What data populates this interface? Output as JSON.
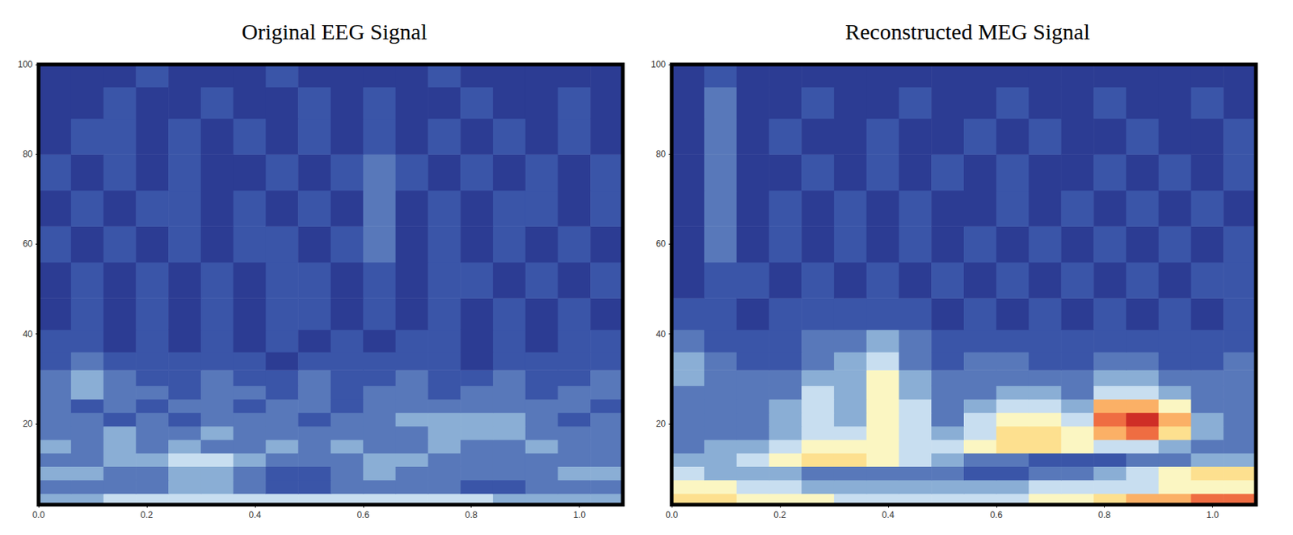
{
  "chart_data": [
    {
      "type": "heatmap",
      "title": "Original EEG Signal",
      "xlim": [
        0,
        1.08
      ],
      "xticks": [
        {
          "value": 0,
          "label": "0.0"
        },
        0.2,
        0.4,
        0.6,
        0.8,
        {
          "value": 1,
          "label": "1.0"
        }
      ],
      "ylim": [
        2,
        100
      ],
      "yticks": [
        20,
        40,
        60,
        80,
        100
      ],
      "x": [
        0.03,
        0.09,
        0.15,
        0.21,
        0.27,
        0.33,
        0.39,
        0.45,
        0.51,
        0.57,
        0.63,
        0.69,
        0.75,
        0.81,
        0.87,
        0.93,
        0.99,
        1.05
      ],
      "y": [
        3,
        6,
        9,
        12,
        15,
        18,
        21,
        24,
        27,
        30,
        34,
        38,
        44,
        52,
        60,
        68,
        76,
        84,
        92,
        98
      ],
      "cells": [
        [
          4,
          4,
          5,
          5,
          5,
          5,
          5,
          5,
          5,
          5,
          5,
          5,
          5,
          5,
          4,
          4,
          4,
          4
        ],
        [
          3,
          3,
          3,
          3,
          4,
          4,
          3,
          2,
          2,
          3,
          3,
          3,
          3,
          2,
          2,
          3,
          3,
          3
        ],
        [
          4,
          4,
          3,
          3,
          4,
          4,
          3,
          2,
          2,
          3,
          4,
          3,
          3,
          3,
          3,
          3,
          4,
          4
        ],
        [
          3,
          3,
          4,
          4,
          5,
          5,
          4,
          3,
          3,
          3,
          4,
          4,
          3,
          3,
          3,
          3,
          3,
          3
        ],
        [
          4,
          3,
          4,
          3,
          4,
          3,
          3,
          4,
          3,
          4,
          3,
          3,
          4,
          3,
          3,
          4,
          3,
          3
        ],
        [
          3,
          3,
          4,
          3,
          3,
          4,
          3,
          3,
          3,
          3,
          3,
          3,
          4,
          4,
          4,
          3,
          3,
          3
        ],
        [
          3,
          3,
          2,
          3,
          2,
          3,
          3,
          3,
          2,
          3,
          3,
          4,
          4,
          4,
          4,
          3,
          2,
          3
        ],
        [
          3,
          2,
          3,
          2,
          3,
          3,
          2,
          3,
          3,
          2,
          3,
          3,
          3,
          3,
          3,
          3,
          3,
          2
        ],
        [
          3,
          4,
          3,
          3,
          2,
          3,
          3,
          2,
          3,
          2,
          3,
          3,
          2,
          3,
          3,
          2,
          3,
          3
        ],
        [
          3,
          4,
          3,
          2,
          2,
          3,
          2,
          2,
          3,
          2,
          2,
          3,
          2,
          2,
          3,
          2,
          2,
          3
        ],
        [
          2,
          3,
          2,
          2,
          2,
          2,
          2,
          1,
          2,
          2,
          2,
          2,
          2,
          1,
          2,
          2,
          2,
          2
        ],
        [
          2,
          2,
          1,
          2,
          1,
          2,
          1,
          2,
          1,
          2,
          1,
          2,
          2,
          1,
          2,
          1,
          2,
          2
        ],
        [
          1,
          2,
          1,
          2,
          1,
          2,
          1,
          2,
          2,
          1,
          2,
          1,
          2,
          1,
          2,
          1,
          2,
          1
        ],
        [
          1,
          2,
          1,
          2,
          1,
          2,
          1,
          2,
          2,
          1,
          2,
          1,
          2,
          2,
          1,
          2,
          1,
          2
        ],
        [
          2,
          1,
          2,
          1,
          2,
          1,
          2,
          2,
          1,
          2,
          3,
          1,
          2,
          1,
          2,
          1,
          2,
          1
        ],
        [
          1,
          2,
          1,
          2,
          2,
          1,
          2,
          1,
          2,
          1,
          3,
          1,
          2,
          1,
          2,
          2,
          1,
          2
        ],
        [
          2,
          1,
          2,
          1,
          2,
          1,
          1,
          2,
          1,
          2,
          3,
          2,
          1,
          2,
          1,
          2,
          1,
          2
        ],
        [
          1,
          2,
          2,
          1,
          2,
          1,
          2,
          1,
          2,
          1,
          2,
          1,
          2,
          1,
          2,
          1,
          2,
          1
        ],
        [
          1,
          1,
          2,
          1,
          1,
          2,
          1,
          1,
          2,
          1,
          2,
          1,
          1,
          2,
          1,
          1,
          2,
          1
        ],
        [
          1,
          1,
          1,
          2,
          1,
          1,
          1,
          2,
          1,
          1,
          1,
          1,
          2,
          1,
          1,
          1,
          1,
          1
        ]
      ]
    },
    {
      "type": "heatmap",
      "title": "Reconstructed MEG Signal",
      "xlim": [
        0,
        1.08
      ],
      "xticks": [
        {
          "value": 0,
          "label": "0.0"
        },
        0.2,
        0.4,
        0.6,
        0.8,
        {
          "value": 1,
          "label": "1.0"
        }
      ],
      "ylim": [
        2,
        100
      ],
      "yticks": [
        20,
        40,
        60,
        80,
        100
      ],
      "x": [
        0.03,
        0.09,
        0.15,
        0.21,
        0.27,
        0.33,
        0.39,
        0.45,
        0.51,
        0.57,
        0.63,
        0.69,
        0.75,
        0.81,
        0.87,
        0.93,
        0.99,
        1.05
      ],
      "y": [
        3,
        6,
        9,
        12,
        15,
        18,
        21,
        24,
        27,
        30,
        34,
        38,
        44,
        52,
        60,
        68,
        76,
        84,
        92,
        98
      ],
      "cells": [
        [
          7,
          7,
          6,
          6,
          6,
          5,
          5,
          5,
          5,
          5,
          5,
          6,
          6,
          7,
          8,
          8,
          9,
          9
        ],
        [
          6,
          6,
          5,
          5,
          4,
          4,
          4,
          4,
          4,
          4,
          4,
          5,
          5,
          5,
          5,
          6,
          6,
          6
        ],
        [
          5,
          4,
          4,
          4,
          3,
          3,
          3,
          3,
          3,
          2,
          2,
          3,
          3,
          4,
          5,
          6,
          7,
          7
        ],
        [
          4,
          4,
          5,
          6,
          7,
          7,
          6,
          5,
          4,
          3,
          3,
          2,
          2,
          2,
          3,
          3,
          4,
          4
        ],
        [
          3,
          4,
          4,
          5,
          6,
          6,
          6,
          5,
          5,
          6,
          7,
          7,
          6,
          5,
          5,
          4,
          3,
          3
        ],
        [
          3,
          3,
          3,
          4,
          5,
          5,
          6,
          5,
          4,
          5,
          7,
          7,
          6,
          8,
          9,
          7,
          4,
          3
        ],
        [
          3,
          3,
          3,
          4,
          5,
          4,
          6,
          5,
          3,
          5,
          6,
          6,
          5,
          9,
          10,
          8,
          4,
          3
        ],
        [
          3,
          3,
          3,
          4,
          5,
          4,
          6,
          5,
          3,
          4,
          5,
          5,
          4,
          8,
          8,
          6,
          3,
          3
        ],
        [
          3,
          3,
          3,
          3,
          5,
          4,
          6,
          4,
          3,
          3,
          4,
          4,
          3,
          5,
          5,
          4,
          3,
          3
        ],
        [
          4,
          3,
          3,
          3,
          4,
          4,
          6,
          4,
          3,
          3,
          3,
          3,
          3,
          4,
          4,
          3,
          3,
          3
        ],
        [
          4,
          3,
          2,
          2,
          3,
          4,
          5,
          3,
          2,
          3,
          3,
          2,
          2,
          3,
          3,
          2,
          2,
          3
        ],
        [
          3,
          2,
          2,
          2,
          3,
          3,
          4,
          3,
          2,
          2,
          2,
          2,
          2,
          2,
          2,
          2,
          2,
          2
        ],
        [
          2,
          2,
          1,
          2,
          2,
          2,
          2,
          2,
          1,
          2,
          1,
          2,
          1,
          2,
          1,
          2,
          1,
          2
        ],
        [
          1,
          2,
          2,
          1,
          2,
          1,
          2,
          1,
          2,
          1,
          2,
          1,
          2,
          1,
          2,
          1,
          2,
          2
        ],
        [
          1,
          3,
          1,
          2,
          1,
          2,
          1,
          2,
          1,
          2,
          1,
          2,
          1,
          2,
          1,
          2,
          1,
          2
        ],
        [
          1,
          3,
          1,
          2,
          1,
          2,
          1,
          2,
          1,
          1,
          2,
          1,
          2,
          1,
          2,
          1,
          2,
          1
        ],
        [
          1,
          3,
          1,
          1,
          2,
          1,
          2,
          1,
          2,
          1,
          2,
          1,
          1,
          2,
          1,
          2,
          1,
          2
        ],
        [
          1,
          3,
          1,
          2,
          1,
          1,
          2,
          1,
          1,
          2,
          1,
          2,
          1,
          1,
          2,
          1,
          1,
          2
        ],
        [
          1,
          3,
          1,
          1,
          2,
          1,
          1,
          2,
          1,
          1,
          2,
          1,
          1,
          2,
          1,
          1,
          2,
          1
        ],
        [
          1,
          2,
          1,
          1,
          1,
          1,
          1,
          1,
          1,
          1,
          1,
          1,
          1,
          1,
          1,
          1,
          1,
          1
        ]
      ]
    }
  ]
}
